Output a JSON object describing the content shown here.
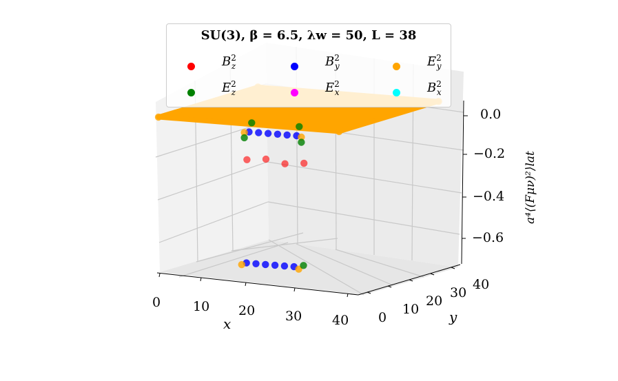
{
  "chart_data": {
    "type": "scatter",
    "title": "SU(3), β = 6.5, λw = 50, L = 38",
    "xlabel": "x",
    "ylabel": "y",
    "zlabel": "a⁴⟨(Fμν)²⟩lat",
    "xlim": [
      0,
      40
    ],
    "ylim": [
      0,
      40
    ],
    "zlim": [
      -0.75,
      0.05
    ],
    "x_ticks": [
      "0",
      "10",
      "20",
      "30",
      "40"
    ],
    "y_ticks": [
      "0",
      "10",
      "20",
      "30",
      "40"
    ],
    "z_ticks": [
      "0.0",
      "−0.2",
      "−0.4",
      "−0.6"
    ],
    "grid": true,
    "legend_placement": "top-center",
    "series": [
      {
        "name": "B_z^2",
        "label_main": "B",
        "label_sup": "2",
        "label_sub": "z",
        "color": "#ff0000",
        "points": [
          [
            12,
            12,
            -0.23
          ],
          [
            16,
            12,
            -0.22
          ],
          [
            20,
            12,
            -0.235
          ],
          [
            24,
            12,
            -0.225
          ]
        ]
      },
      {
        "name": "B_y^2",
        "label_main": "B",
        "label_sup": "2",
        "label_sub": "y",
        "color": "#0000ff",
        "points": [
          [
            13,
            10,
            -0.72
          ],
          [
            15,
            10,
            -0.72
          ],
          [
            17,
            10,
            -0.72
          ],
          [
            19,
            10,
            -0.72
          ],
          [
            21,
            10,
            -0.72
          ],
          [
            23,
            10,
            -0.72
          ],
          [
            13,
            11,
            -0.09
          ],
          [
            15,
            11,
            -0.09
          ],
          [
            17,
            11,
            -0.09
          ],
          [
            19,
            11,
            -0.09
          ],
          [
            21,
            11,
            -0.09
          ],
          [
            23,
            11,
            -0.09
          ]
        ]
      },
      {
        "name": "E_y^2",
        "label_main": "E",
        "label_sup": "2",
        "label_sub": "y",
        "color": "#ffa500",
        "points": [
          [
            0,
            0,
            0.0
          ],
          [
            38,
            0,
            0.0
          ],
          [
            0,
            38,
            0.0
          ],
          [
            38,
            38,
            0.0
          ],
          [
            12,
            11,
            -0.095
          ],
          [
            24,
            11,
            -0.095
          ],
          [
            12,
            10,
            -0.73
          ],
          [
            24,
            10,
            -0.73
          ]
        ]
      },
      {
        "name": "E_z^2",
        "label_main": "E",
        "label_sup": "2",
        "label_sub": "z",
        "color": "#008000",
        "points": [
          [
            13,
            12,
            -0.05
          ],
          [
            23,
            12,
            -0.05
          ],
          [
            12,
            11,
            -0.12
          ],
          [
            24,
            11,
            -0.12
          ],
          [
            25,
            10,
            -0.71
          ]
        ]
      },
      {
        "name": "E_x^2",
        "label_main": "E",
        "label_sup": "2",
        "label_sub": "x",
        "color": "#ff00ff",
        "points": []
      },
      {
        "name": "B_x^2",
        "label_main": "B",
        "label_sup": "2",
        "label_sub": "x",
        "color": "#00ffff",
        "points": []
      }
    ]
  }
}
